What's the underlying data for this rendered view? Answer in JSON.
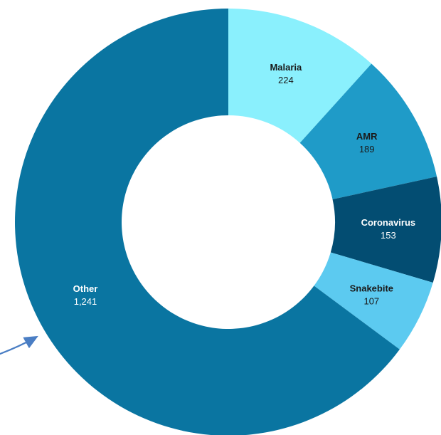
{
  "chart_data": {
    "type": "pie",
    "donut": true,
    "categories": [
      "Malaria",
      "AMR",
      "Coronavirus",
      "Snakebite",
      "Other"
    ],
    "values": [
      224,
      189,
      153,
      107,
      1241
    ],
    "labels": [
      "224",
      "189",
      "153",
      "107",
      "1,241"
    ],
    "colors": [
      "#8af0fd",
      "#1f9bc8",
      "#034d72",
      "#5ccaf0",
      "#0a75a1"
    ],
    "label_colors": [
      "#1a1a1a",
      "#1a1a1a",
      "#ffffff",
      "#1a1a1a",
      "#ffffff"
    ],
    "title": "",
    "legend": "none"
  },
  "annotation": {
    "arrow_color": "#4a7ec4"
  }
}
